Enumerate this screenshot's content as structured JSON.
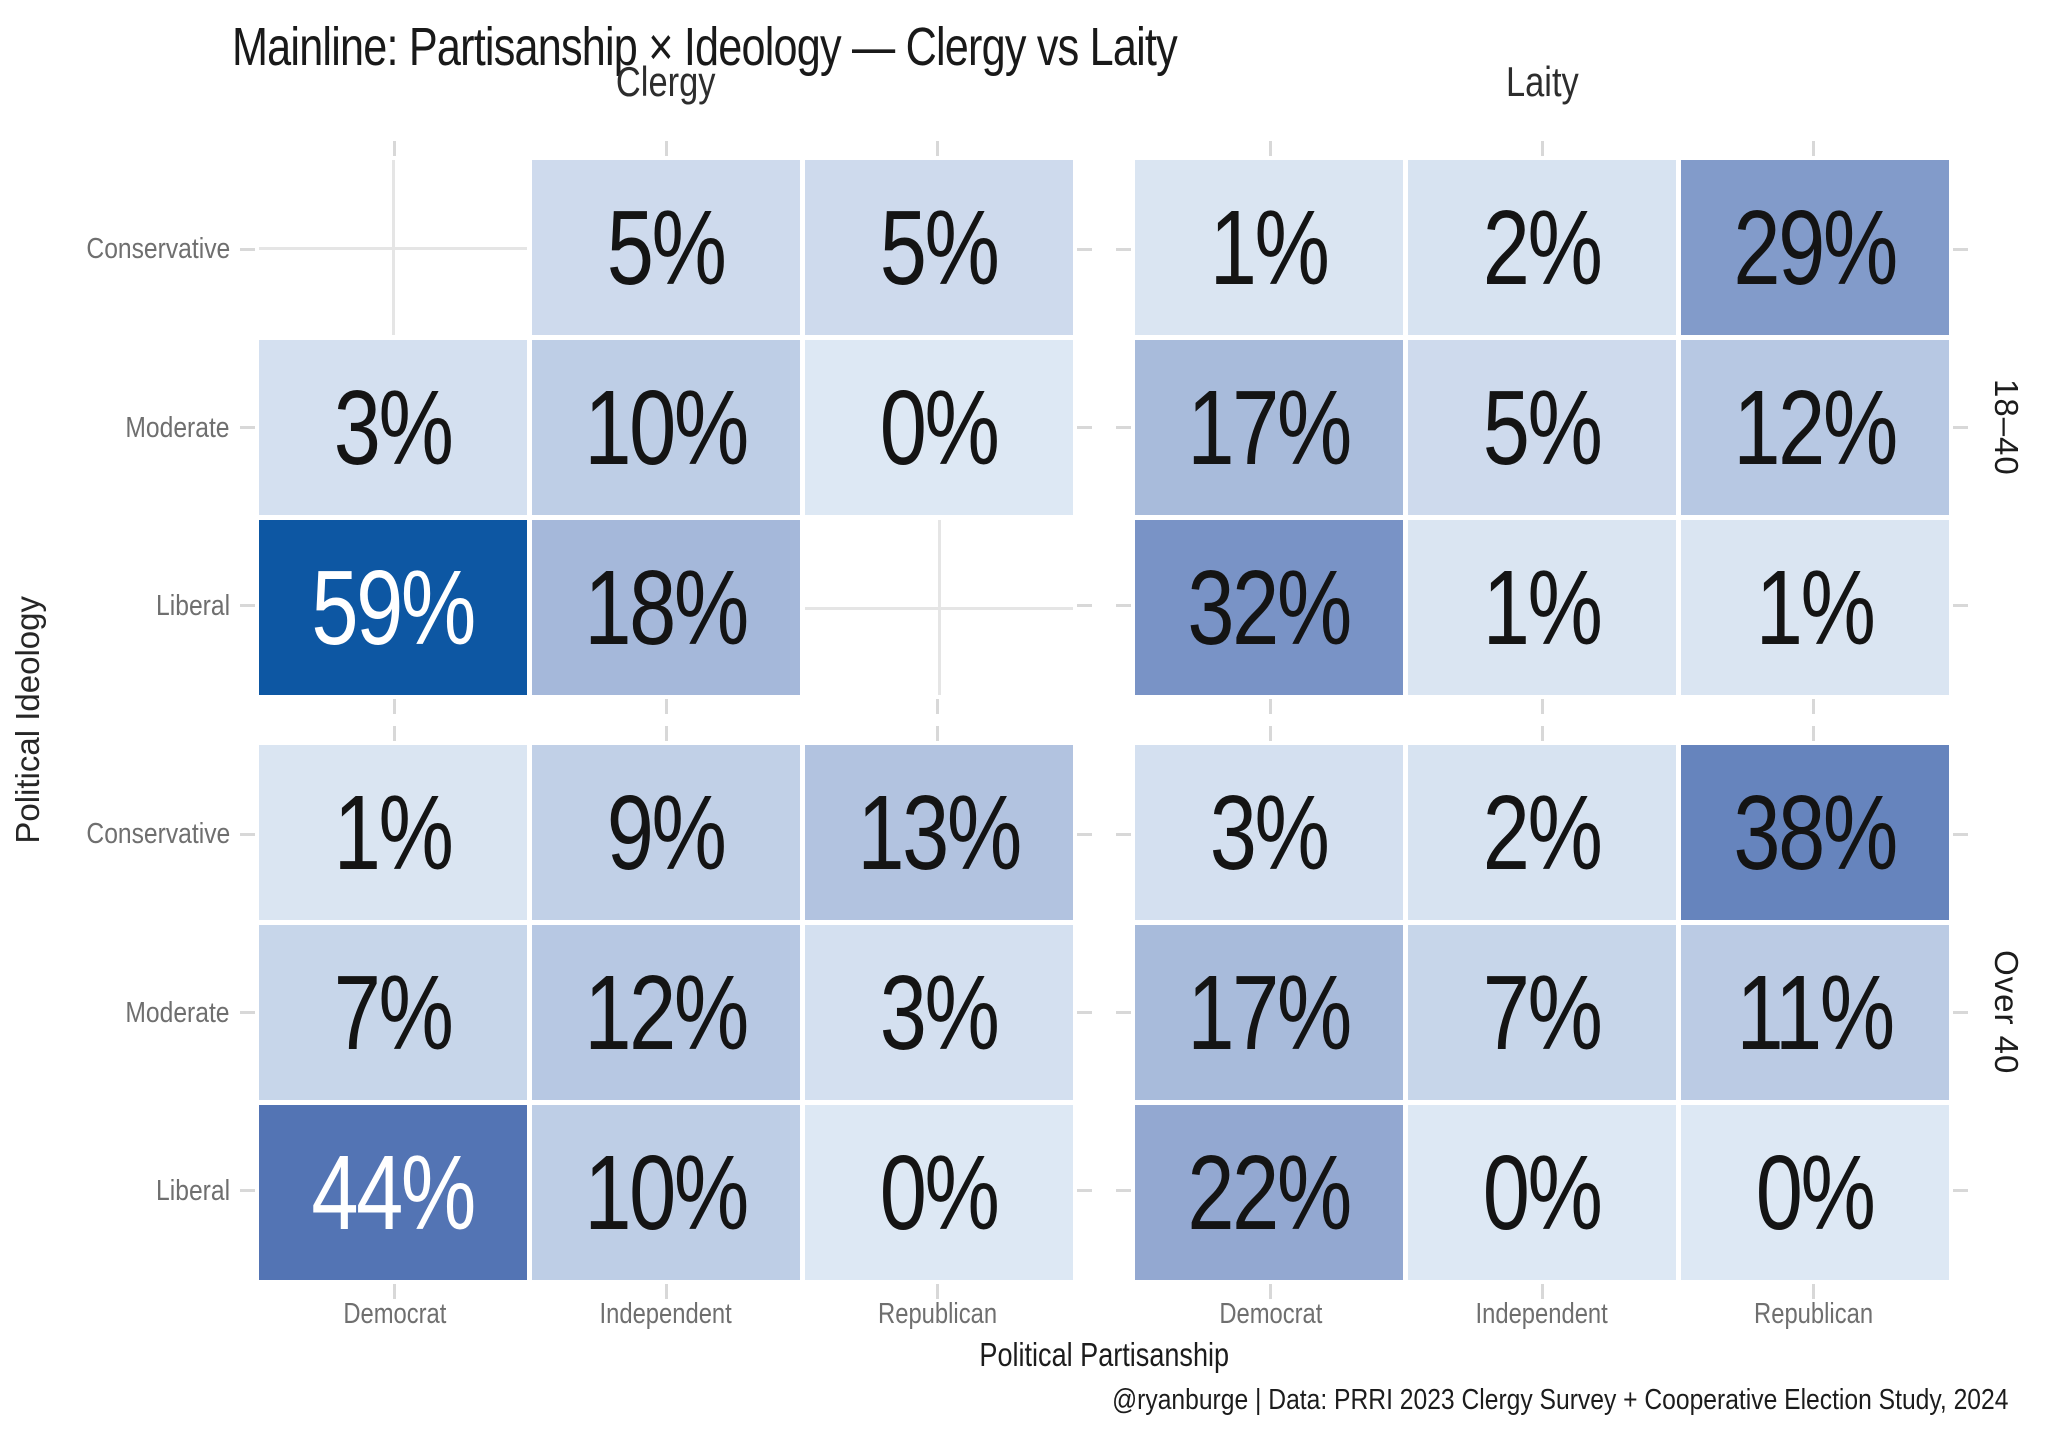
{
  "title": "Mainline: Partisanship × Ideology — Clergy vs Laity",
  "caption": "@ryanburge | Data: PRRI 2023 Clergy Survey + Cooperative Election Study, 2024",
  "axes": {
    "x_label": "Political Partisanship",
    "y_label": "Political Ideology",
    "x_ticks": [
      "Democrat",
      "Independent",
      "Republican"
    ],
    "y_ticks": [
      "Conservative",
      "Moderate",
      "Liberal"
    ]
  },
  "facets": {
    "columns": [
      "Clergy",
      "Laity"
    ],
    "rows": [
      "18–40",
      "Over 40"
    ]
  },
  "colors": {
    "background": "#ffffff",
    "tile_min": "#dde8f4",
    "tile_max": "#0d57a3",
    "tick": "#d8d8d8",
    "gridline": "#e5e5e5",
    "value_text_dark": "#141414",
    "value_text_light": "#ffffff",
    "axis_text": "#6f6f6f"
  },
  "chart_data": {
    "type": "heatmap",
    "unit": "%",
    "x_categories": [
      "Democrat",
      "Independent",
      "Republican"
    ],
    "y_categories": [
      "Conservative",
      "Moderate",
      "Liberal"
    ],
    "value_range": [
      0,
      59
    ],
    "legend": "none",
    "panels": [
      {
        "facet_column": "Clergy",
        "facet_row": "18–40",
        "values": [
          [
            null,
            5,
            5
          ],
          [
            3,
            10,
            0
          ],
          [
            59,
            18,
            null
          ]
        ],
        "labels": [
          [
            "",
            "5%",
            "5%"
          ],
          [
            "3%",
            "10%",
            "0%"
          ],
          [
            "59%",
            "18%",
            ""
          ]
        ],
        "tile_colors": [
          [
            null,
            "#cedaed",
            "#cedaed"
          ],
          [
            "#d4e0f0",
            "#becee6",
            "#dde8f4"
          ],
          [
            "#0d57a3",
            "#a5b8da",
            null
          ]
        ],
        "text_colors": [
          [
            null,
            "dark",
            "dark"
          ],
          [
            "dark",
            "dark",
            "dark"
          ],
          [
            "light",
            "dark",
            null
          ]
        ]
      },
      {
        "facet_column": "Laity",
        "facet_row": "18–40",
        "values": [
          [
            1,
            2,
            29
          ],
          [
            17,
            5,
            12
          ],
          [
            32,
            1,
            1
          ]
        ],
        "labels": [
          [
            "1%",
            "2%",
            "29%"
          ],
          [
            "17%",
            "5%",
            "12%"
          ],
          [
            "32%",
            "1%",
            "1%"
          ]
        ],
        "tile_colors": [
          [
            "#dae5f2",
            "#d7e3f1",
            "#829bca"
          ],
          [
            "#a8bbdb",
            "#cedaed",
            "#b7c8e3"
          ],
          [
            "#7993c6",
            "#dae5f2",
            "#dae5f2"
          ]
        ],
        "text_colors": [
          [
            "dark",
            "dark",
            "dark"
          ],
          [
            "dark",
            "dark",
            "dark"
          ],
          [
            "dark",
            "dark",
            "dark"
          ]
        ]
      },
      {
        "facet_column": "Clergy",
        "facet_row": "Over 40",
        "values": [
          [
            1,
            9,
            13
          ],
          [
            7,
            12,
            3
          ],
          [
            44,
            10,
            0
          ]
        ],
        "labels": [
          [
            "1%",
            "9%",
            "13%"
          ],
          [
            "7%",
            "12%",
            "3%"
          ],
          [
            "44%",
            "10%",
            "0%"
          ]
        ],
        "tile_colors": [
          [
            "#dae5f2",
            "#c1d0e7",
            "#b2c3e0"
          ],
          [
            "#c7d6ea",
            "#b7c8e3",
            "#d4e0f0"
          ],
          [
            "#5374b4",
            "#becee6",
            "#dde8f4"
          ]
        ],
        "text_colors": [
          [
            "dark",
            "dark",
            "dark"
          ],
          [
            "dark",
            "dark",
            "dark"
          ],
          [
            "light",
            "dark",
            "dark"
          ]
        ]
      },
      {
        "facet_column": "Laity",
        "facet_row": "Over 40",
        "values": [
          [
            3,
            2,
            38
          ],
          [
            17,
            7,
            11
          ],
          [
            22,
            0,
            0
          ]
        ],
        "labels": [
          [
            "3%",
            "2%",
            "38%"
          ],
          [
            "17%",
            "7%",
            "11%"
          ],
          [
            "22%",
            "0%",
            "0%"
          ]
        ],
        "tile_colors": [
          [
            "#d4e0f0",
            "#d7e3f1",
            "#6684bd"
          ],
          [
            "#a8bbdb",
            "#c7d6ea",
            "#bbcbe4"
          ],
          [
            "#93a8d1",
            "#dde8f4",
            "#dde8f4"
          ]
        ],
        "text_colors": [
          [
            "dark",
            "dark",
            "dark"
          ],
          [
            "dark",
            "dark",
            "dark"
          ],
          [
            "dark",
            "dark",
            "dark"
          ]
        ]
      }
    ]
  }
}
